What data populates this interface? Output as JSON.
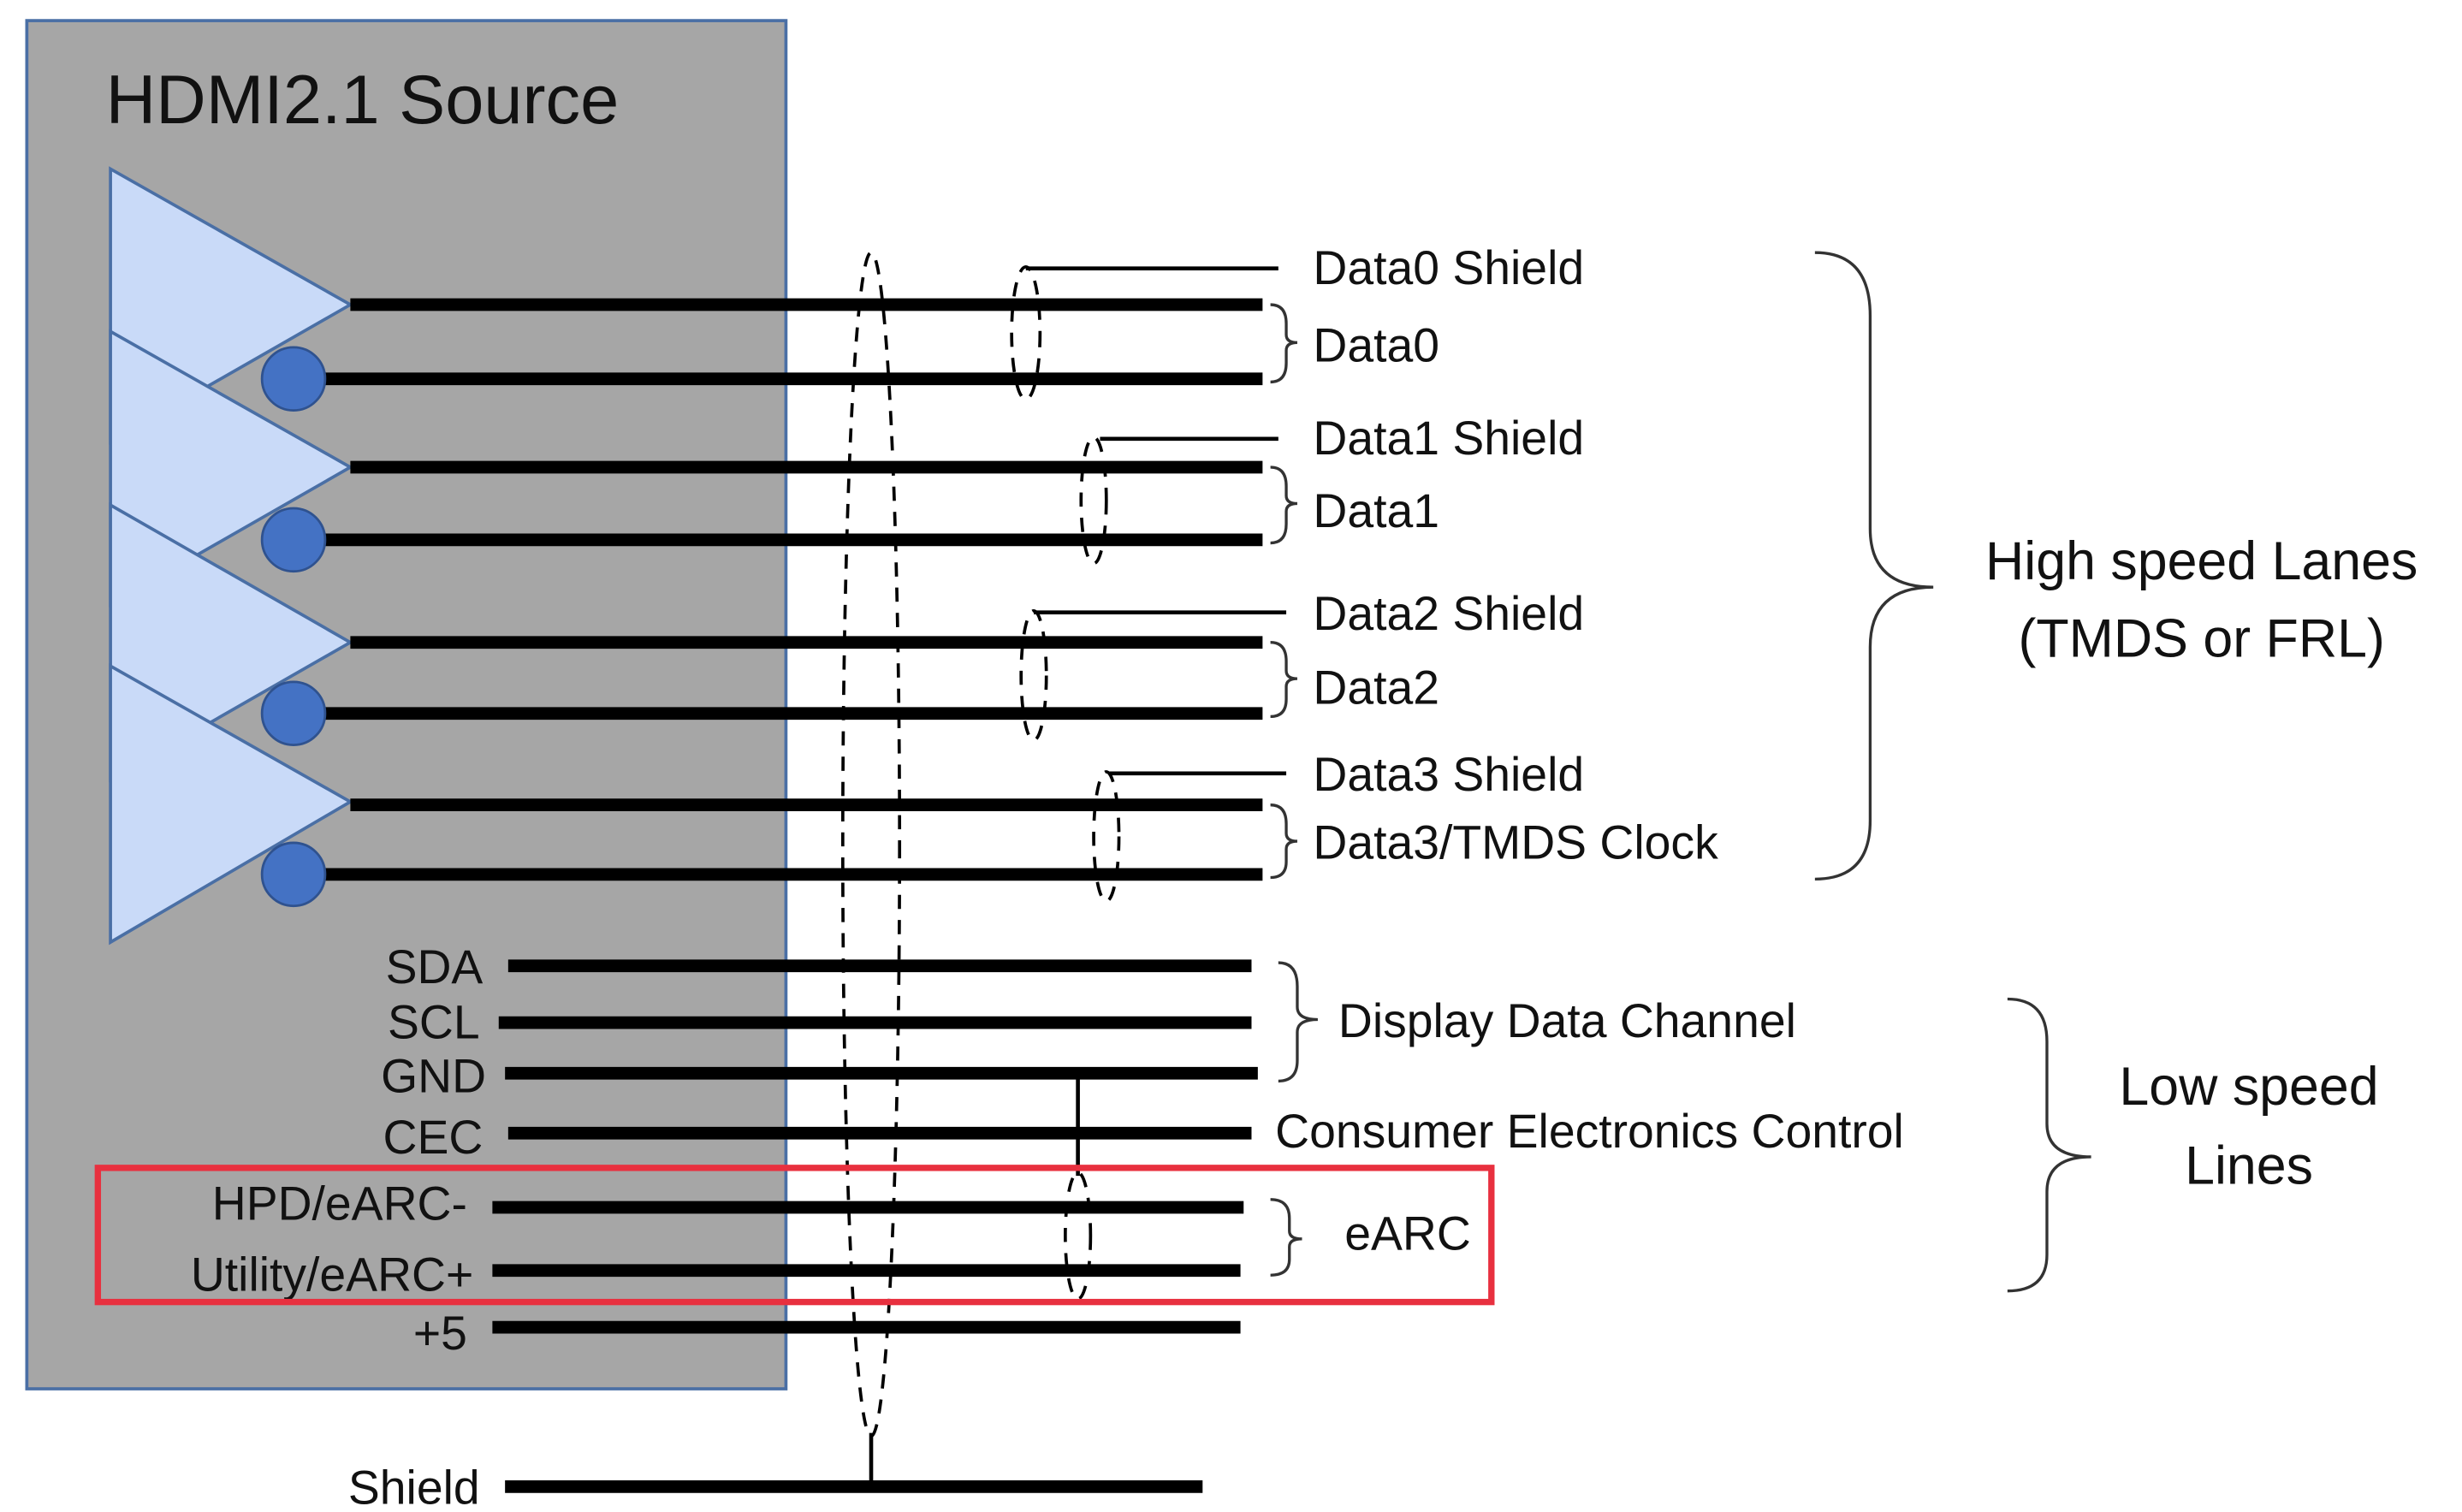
{
  "source": {
    "title": "HDMI2.1 Source",
    "box_color": "#a6a6a6",
    "driver_color": "#c9daf8",
    "inverter_color": "#4472c4"
  },
  "high_speed": {
    "lanes": [
      {
        "shield": "Data0 Shield",
        "pair": "Data0"
      },
      {
        "shield": "Data1 Shield",
        "pair": "Data1"
      },
      {
        "shield": "Data2 Shield",
        "pair": "Data2"
      },
      {
        "shield": "Data3 Shield",
        "pair": "Data3/TMDS Clock"
      }
    ],
    "group_label_1": "High speed Lanes",
    "group_label_2": "(TMDS or FRL)"
  },
  "low_speed": {
    "pins": [
      "SDA",
      "SCL",
      "GND",
      "CEC",
      "HPD/eARC-",
      "Utility/eARC+",
      "+5"
    ],
    "ddc_label": "Display Data Channel",
    "cec_label": "Consumer Electronics Control",
    "earc_label": "eARC",
    "group_label_1": "Low speed",
    "group_label_2": "Lines"
  },
  "shield_label": "Shield",
  "highlight_color": "#e8303f"
}
